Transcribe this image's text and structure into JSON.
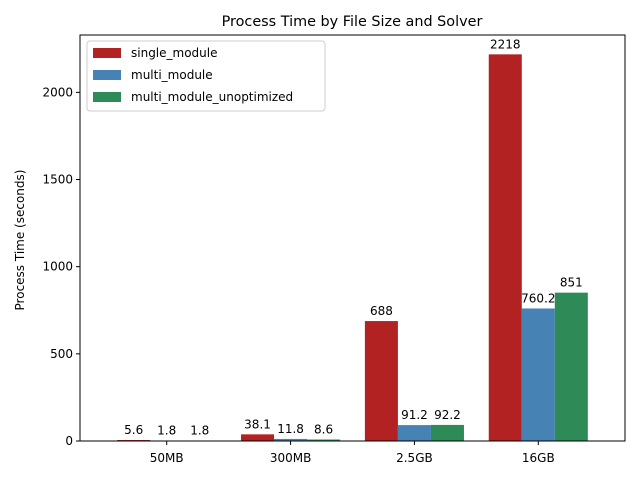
{
  "chart_data": {
    "type": "bar",
    "title": "Process Time by File Size and Solver",
    "xlabel": "",
    "ylabel": "Process Time (seconds)",
    "categories": [
      "50MB",
      "300MB",
      "2.5GB",
      "16GB"
    ],
    "ylim": [
      0,
      2329
    ],
    "yticks": [
      0,
      500,
      1000,
      1500,
      2000
    ],
    "grid": false,
    "legend_position": "top-left",
    "series": [
      {
        "name": "single_module",
        "color": "#b22222",
        "values": [
          5.6,
          38.1,
          688,
          2218
        ],
        "labels": [
          "5.6",
          "38.1",
          "688",
          "2218"
        ]
      },
      {
        "name": "multi_module",
        "color": "#4682b4",
        "values": [
          1.8,
          11.8,
          91.2,
          760.2
        ],
        "labels": [
          "1.8",
          "11.8",
          "91.2",
          "760.2"
        ]
      },
      {
        "name": "multi_module_unoptimized",
        "color": "#2e8b57",
        "values": [
          1.8,
          8.6,
          92.2,
          851
        ],
        "labels": [
          "1.8",
          "8.6",
          "92.2",
          "851"
        ]
      }
    ]
  }
}
